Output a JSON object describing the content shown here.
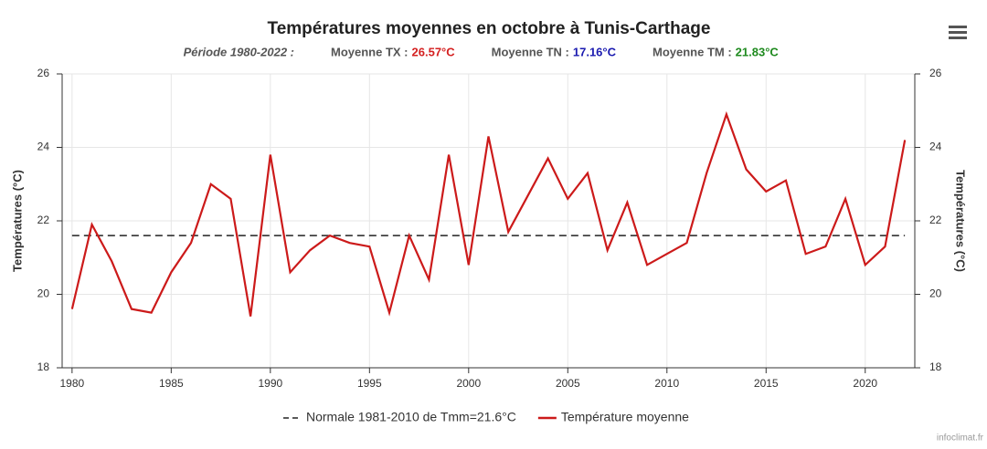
{
  "chart_data": {
    "type": "line",
    "title": "Températures moyennes en octobre à Tunis-Carthage",
    "subtitle": {
      "period": "Période 1980-2022 :",
      "stats": [
        {
          "label": "Moyenne TX :",
          "value": "26.57°C",
          "color": "#d42020"
        },
        {
          "label": "Moyenne TN :",
          "value": "17.16°C",
          "color": "#1a1ab0"
        },
        {
          "label": "Moyenne TM :",
          "value": "21.83°C",
          "color": "#1e8a1e"
        }
      ]
    },
    "y_label": "Températures (°C)",
    "y2_label": "Températures (°C)",
    "x": [
      1980,
      1981,
      1982,
      1983,
      1984,
      1985,
      1986,
      1987,
      1988,
      1989,
      1990,
      1991,
      1992,
      1993,
      1994,
      1995,
      1996,
      1997,
      1998,
      1999,
      2000,
      2001,
      2002,
      2003,
      2004,
      2005,
      2006,
      2007,
      2008,
      2009,
      2010,
      2011,
      2012,
      2013,
      2014,
      2015,
      2016,
      2017,
      2018,
      2019,
      2020,
      2021,
      2022
    ],
    "series": [
      {
        "name": "Température moyenne",
        "color": "#cc1a1a",
        "values": [
          19.6,
          21.9,
          20.9,
          19.6,
          19.5,
          20.6,
          21.4,
          23.0,
          22.6,
          19.4,
          23.8,
          20.6,
          21.2,
          21.6,
          21.4,
          21.3,
          19.5,
          21.6,
          20.4,
          23.8,
          20.8,
          24.3,
          21.7,
          22.7,
          23.7,
          22.6,
          23.3,
          21.2,
          22.5,
          20.8,
          21.1,
          21.4,
          23.3,
          24.9,
          23.4,
          22.8,
          23.1,
          21.1,
          21.3,
          22.6,
          20.8,
          21.3,
          24.2
        ]
      }
    ],
    "reference_line": {
      "name": "Normale 1981-2010 de Tmm=21.6°C",
      "value": 21.6,
      "color": "#222",
      "dashed": true
    },
    "xlim": [
      1979.5,
      2022.5
    ],
    "xticks": [
      1980,
      1985,
      1990,
      1995,
      2000,
      2005,
      2010,
      2015,
      2020
    ],
    "ylim": [
      18,
      26
    ],
    "yticks": [
      18,
      20,
      22,
      24,
      26
    ],
    "grid": true,
    "legend": "bottom",
    "credit": "infoclimat.fr"
  }
}
